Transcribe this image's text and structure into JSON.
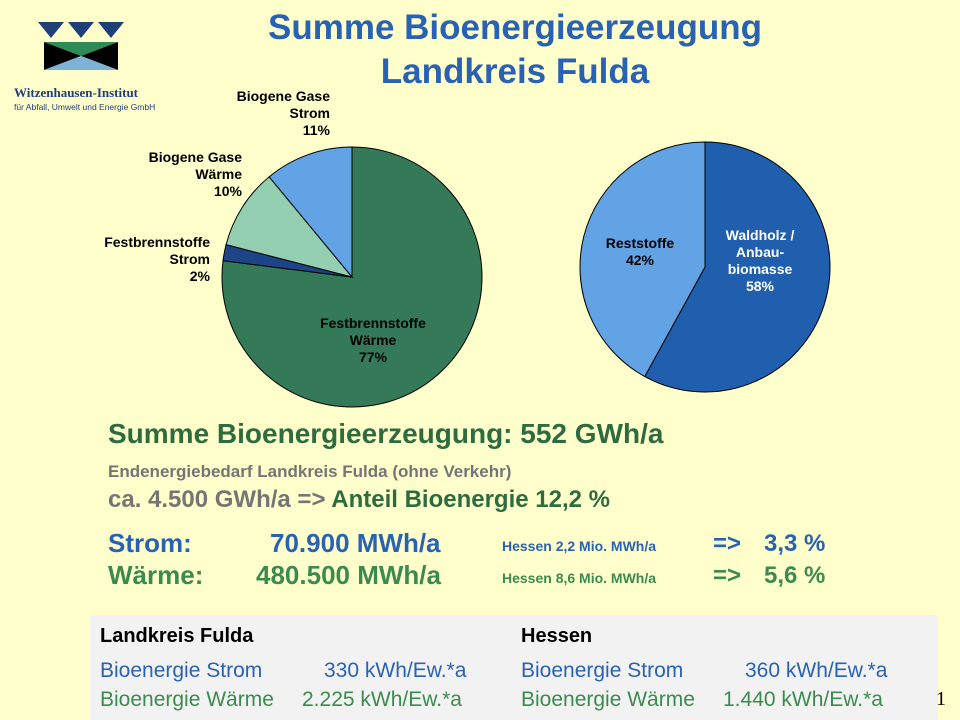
{
  "colors": {
    "background": "#ffffcc",
    "title": "#2962b4",
    "dark_green": "#2e6b3f",
    "green": "#3c8a4f",
    "blue": "#2962b4",
    "grey": "#757575",
    "box": "#f2f2f2"
  },
  "logo": {
    "name": "Witzenhausen-Institut",
    "subtitle": "für Abfall, Umwelt und Energie GmbH"
  },
  "title": {
    "line1": "Summe Bioenergieerzeugung",
    "line2": "Landkreis Fulda"
  },
  "chart_data": [
    {
      "type": "pie",
      "start_angle_deg": 0,
      "direction": "clockwise",
      "slices": [
        {
          "label": [
            "Festbrennstoffe",
            "Wärme"
          ],
          "value": 77,
          "display": "77%",
          "color": "#357a58",
          "label_color": "#000000"
        },
        {
          "label": [
            "Festbrennstoffe",
            "Strom"
          ],
          "value": 2,
          "display": "2%",
          "color": "#1c4587",
          "label_color": "#000000"
        },
        {
          "label": [
            "Biogene Gase",
            "Wärme"
          ],
          "value": 10,
          "display": "10%",
          "color": "#93cfb0",
          "label_color": "#000000"
        },
        {
          "label": [
            "Biogene Gase",
            "Strom"
          ],
          "value": 11,
          "display": "11%",
          "color": "#62a3e6",
          "label_color": "#000000"
        }
      ]
    },
    {
      "type": "pie",
      "start_angle_deg": 0,
      "direction": "clockwise",
      "slices": [
        {
          "label": [
            "Waldholz /",
            "Anbau-",
            "biomasse"
          ],
          "value": 58,
          "display": "58%",
          "color": "#1f5fae",
          "label_color": "#ffffff"
        },
        {
          "label": [
            "Reststoffe"
          ],
          "value": 42,
          "display": "42%",
          "color": "#62a3e6",
          "label_color": "#000000"
        }
      ]
    }
  ],
  "summary": {
    "total": "Summe Bioenergieerzeugung: 552 GWh/a",
    "demand_label": "Endenergiebedarf Landkreis Fulda  (ohne Verkehr)",
    "demand_value": "ca. 4.500 GWh/a =>",
    "share": "Anteil Bioenergie 12,2 %"
  },
  "strom": {
    "label": "Strom:",
    "value": "70.900 MWh/a",
    "hessen": "Hessen 2,2 Mio. MWh/a",
    "arrow": "=>",
    "percent": "3,3 %"
  },
  "waerme": {
    "label": "Wärme:",
    "value": "480.500 MWh/a",
    "hessen": "Hessen 8,6 Mio. MWh/a",
    "arrow": "=>",
    "percent": "5,6 %"
  },
  "table": {
    "left": {
      "header": "Landkreis Fulda",
      "strom_label": "Bioenergie Strom",
      "strom_value": "330 kWh/Ew.*a",
      "waerme_label": "Bioenergie Wärme",
      "waerme_value": "2.225 kWh/Ew.*a"
    },
    "right": {
      "header": "Hessen",
      "strom_label": "Bioenergie Strom",
      "strom_value": "360 kWh/Ew.*a",
      "waerme_label": "Bioenergie Wärme",
      "waerme_value": "1.440 kWh/Ew.*a"
    }
  },
  "page_number": "1"
}
